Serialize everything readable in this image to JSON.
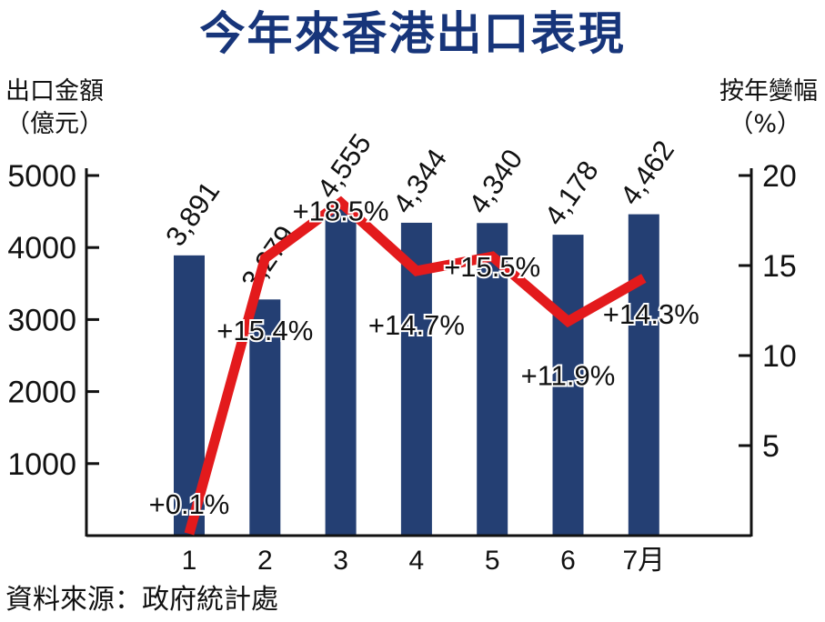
{
  "title": "今年來香港出口表現",
  "left_axis": {
    "caption": "出口金額",
    "unit": "（億元）"
  },
  "right_axis": {
    "caption": "按年變幅",
    "unit": "（%）"
  },
  "source": "資料來源：政府統計處",
  "colors": {
    "title": "#17357a",
    "bar": "#243f73",
    "line": "#e31a1c",
    "axis": "#111111"
  },
  "chart_data": {
    "type": "bar",
    "categories": [
      "1",
      "2",
      "3",
      "4",
      "5",
      "6",
      "7月"
    ],
    "series": [
      {
        "type": "bar",
        "axis": "left",
        "values": [
          3891,
          3279,
          4555,
          4344,
          4340,
          4178,
          4462
        ],
        "labels": [
          "3,891",
          "3,279",
          "4,555",
          "4,344",
          "4,340",
          "4,178",
          "4,462"
        ]
      },
      {
        "type": "line",
        "axis": "right",
        "values": [
          0.1,
          15.4,
          18.5,
          14.7,
          15.5,
          11.9,
          14.3
        ],
        "labels": [
          "+0.1%",
          "+15.4%",
          "+18.5%",
          "+14.7%",
          "+15.5%",
          "+11.9%",
          "+14.3%"
        ]
      }
    ],
    "left_ylim": [
      0,
      5000
    ],
    "left_ticks": [
      "1000",
      "2000",
      "3000",
      "4000",
      "5000"
    ],
    "right_ylim": [
      0,
      20
    ],
    "right_ticks": [
      "5",
      "10",
      "15",
      "20"
    ],
    "xlabel": "",
    "grid": false,
    "legend": "none"
  }
}
